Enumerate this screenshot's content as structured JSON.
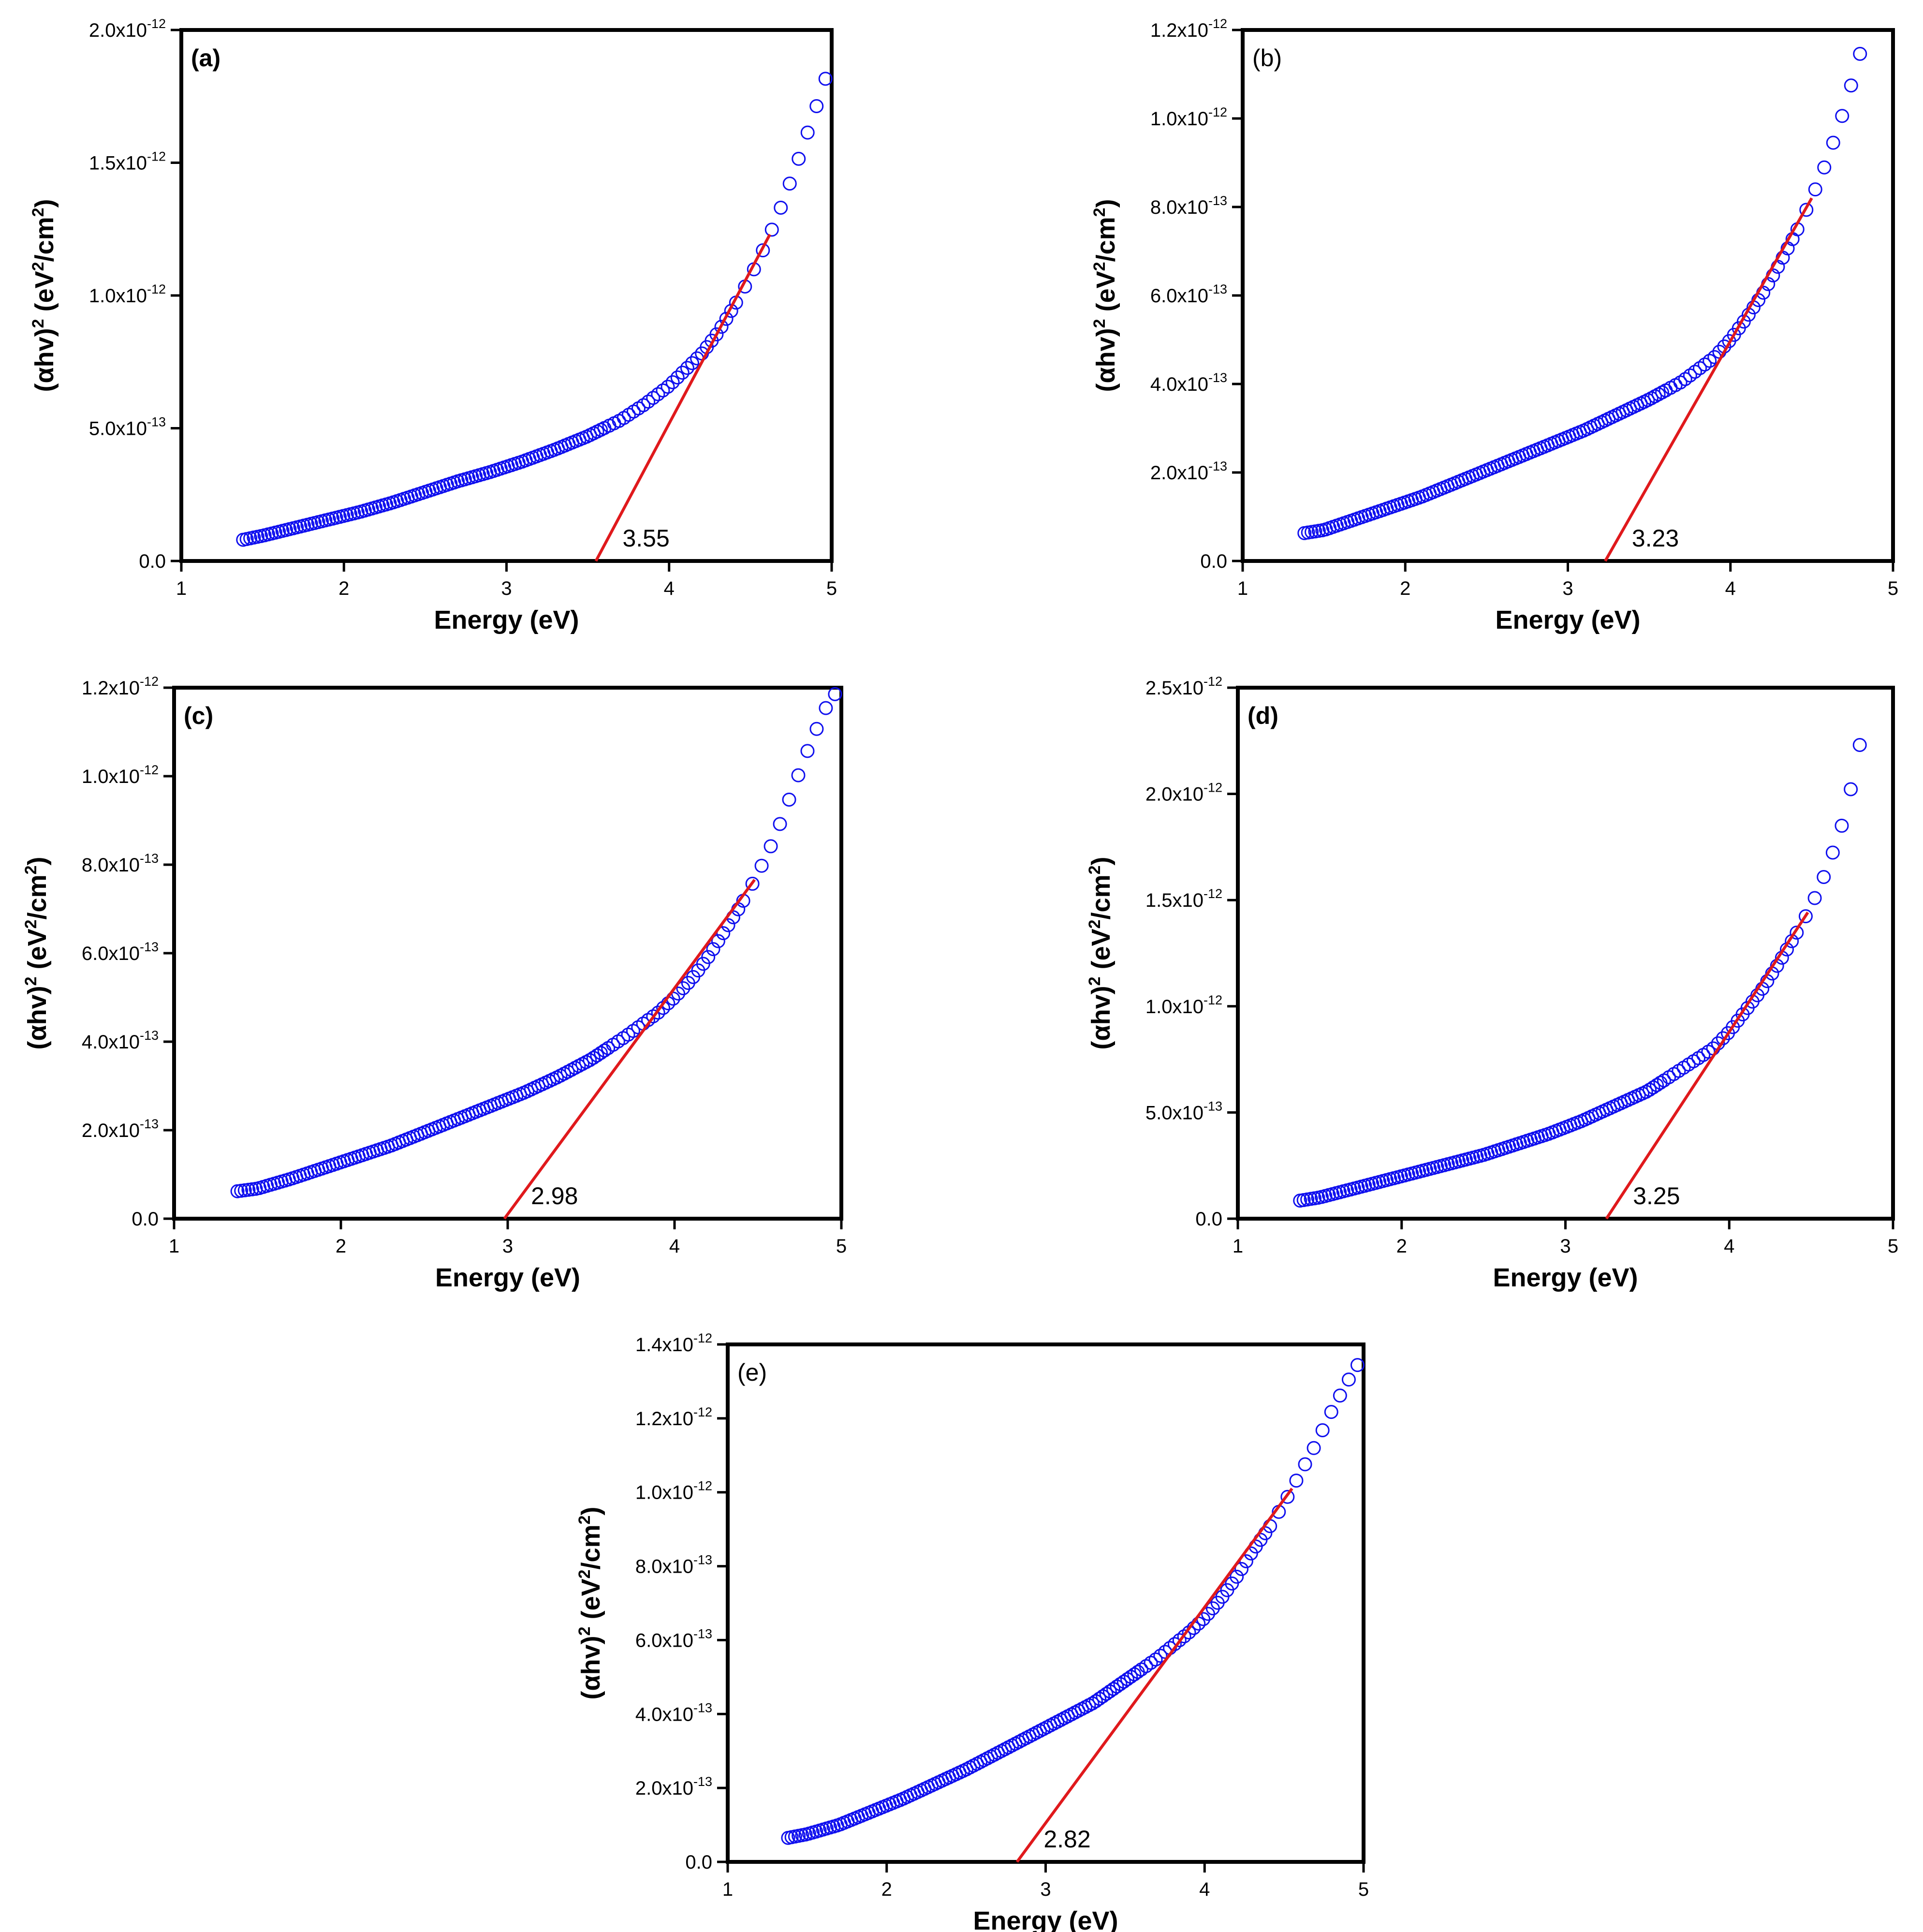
{
  "figure": {
    "style": {
      "marker_color": "#1010ee",
      "fit_line_color": "#e0191c",
      "axis_color": "#000000",
      "background": "#ffffff"
    }
  },
  "chart_data": [
    {
      "panel": "a",
      "label": "(a)",
      "label_bold": true,
      "type": "scatter",
      "xlabel": "Energy (eV)",
      "ylabel": "(αhv)² (eV²/cm²)",
      "xlim": [
        1,
        5
      ],
      "ylim": [
        0,
        2e-12
      ],
      "xticks": [
        1,
        2,
        3,
        4,
        5
      ],
      "xtick_labels": [
        "1",
        "2",
        "3",
        "4",
        "5"
      ],
      "yticks": [
        0,
        5e-13,
        1e-12,
        1.5e-12,
        2e-12
      ],
      "ytick_labels": [
        {
          "mant": "0.0",
          "exp": ""
        },
        {
          "mant": "5.0x10",
          "exp": "-13"
        },
        {
          "mant": "1.0x10",
          "exp": "-12"
        },
        {
          "mant": "1.5x10",
          "exp": "-12"
        },
        {
          "mant": "2.0x10",
          "exp": "-12"
        }
      ],
      "series": [
        {
          "marker": "open-circle",
          "points": [
            [
              1.38,
              8e-14
            ],
            [
              1.5,
              9.5e-14
            ],
            [
              1.7,
              1.25e-13
            ],
            [
              1.9,
              1.55e-13
            ],
            [
              2.1,
              1.85e-13
            ],
            [
              2.3,
              2.2e-13
            ],
            [
              2.5,
              2.6e-13
            ],
            [
              2.7,
              3e-13
            ],
            [
              2.9,
              3.35e-13
            ],
            [
              3.1,
              3.75e-13
            ],
            [
              3.3,
              4.2e-13
            ],
            [
              3.5,
              4.7e-13
            ],
            [
              3.7,
              5.3e-13
            ],
            [
              3.85,
              5.9e-13
            ],
            [
              4.0,
              6.6e-13
            ],
            [
              4.1,
              7.2e-13
            ],
            [
              4.2,
              7.8e-13
            ],
            [
              4.3,
              8.6e-13
            ],
            [
              4.4,
              9.6e-13
            ],
            [
              4.5,
              1.07e-12
            ],
            [
              4.6,
              1.2e-12
            ],
            [
              4.7,
              1.35e-12
            ],
            [
              4.8,
              1.52e-12
            ],
            [
              4.9,
              1.7e-12
            ],
            [
              4.98,
              1.85e-12
            ]
          ]
        }
      ],
      "fit_line": {
        "x0": 3.55,
        "x1": 4.62
      },
      "annotations": [
        {
          "text": "3.55",
          "x": 3.55
        }
      ]
    },
    {
      "panel": "b",
      "label": "(b)",
      "label_bold": false,
      "type": "scatter",
      "xlabel": "Energy (eV)",
      "ylabel": "(αhv)² (eV²/cm²)",
      "xlim": [
        1,
        5
      ],
      "ylim": [
        0,
        1.2e-12
      ],
      "xticks": [
        1,
        2,
        3,
        4,
        5
      ],
      "xtick_labels": [
        "1",
        "2",
        "3",
        "4",
        "5"
      ],
      "yticks": [
        0,
        2e-13,
        4e-13,
        6e-13,
        8e-13,
        1e-12,
        1.2e-12
      ],
      "ytick_labels": [
        {
          "mant": "0.0",
          "exp": ""
        },
        {
          "mant": "2.0x10",
          "exp": "-13"
        },
        {
          "mant": "4.0x10",
          "exp": "-13"
        },
        {
          "mant": "6.0x10",
          "exp": "-13"
        },
        {
          "mant": "8.0x10",
          "exp": "-13"
        },
        {
          "mant": "1.0x10",
          "exp": "-12"
        },
        {
          "mant": "1.2x10",
          "exp": "-12"
        }
      ],
      "series": [
        {
          "marker": "open-circle",
          "points": [
            [
              1.38,
              6.3e-14
            ],
            [
              1.5,
              7e-14
            ],
            [
              1.7,
              9.5e-14
            ],
            [
              1.9,
              1.2e-13
            ],
            [
              2.1,
              1.45e-13
            ],
            [
              2.3,
              1.75e-13
            ],
            [
              2.5,
              2.05e-13
            ],
            [
              2.7,
              2.35e-13
            ],
            [
              2.9,
              2.65e-13
            ],
            [
              3.1,
              2.95e-13
            ],
            [
              3.3,
              3.3e-13
            ],
            [
              3.5,
              3.65e-13
            ],
            [
              3.7,
              4.05e-13
            ],
            [
              3.9,
              4.6e-13
            ],
            [
              4.0,
              5e-13
            ],
            [
              4.1,
              5.5e-13
            ],
            [
              4.2,
              6.05e-13
            ],
            [
              4.3,
              6.7e-13
            ],
            [
              4.4,
              7.4e-13
            ],
            [
              4.5,
              8.2e-13
            ],
            [
              4.6,
              9.1e-13
            ],
            [
              4.7,
              1.02e-12
            ],
            [
              4.8,
              1.15e-12
            ],
            [
              4.83,
              1.2e-12
            ]
          ]
        }
      ],
      "fit_line": {
        "x0": 3.23,
        "x1": 4.5
      },
      "annotations": [
        {
          "text": "3.23",
          "x": 3.23
        }
      ]
    },
    {
      "panel": "c",
      "label": "(c)",
      "label_bold": true,
      "type": "scatter",
      "xlabel": "Energy (eV)",
      "ylabel": "(αhv)² (eV²/cm²)",
      "xlim": [
        1,
        5
      ],
      "ylim": [
        0,
        1.2e-12
      ],
      "xticks": [
        1,
        2,
        3,
        4,
        5
      ],
      "xtick_labels": [
        "1",
        "2",
        "3",
        "4",
        "5"
      ],
      "yticks": [
        0,
        2e-13,
        4e-13,
        6e-13,
        8e-13,
        1e-12,
        1.2e-12
      ],
      "ytick_labels": [
        {
          "mant": "0.0",
          "exp": ""
        },
        {
          "mant": "2.0x10",
          "exp": "-13"
        },
        {
          "mant": "4.0x10",
          "exp": "-13"
        },
        {
          "mant": "6.0x10",
          "exp": "-13"
        },
        {
          "mant": "8.0x10",
          "exp": "-13"
        },
        {
          "mant": "1.0x10",
          "exp": "-12"
        },
        {
          "mant": "1.2x10",
          "exp": "-12"
        }
      ],
      "series": [
        {
          "marker": "open-circle",
          "points": [
            [
              1.38,
              6.2e-14
            ],
            [
              1.5,
              6.8e-14
            ],
            [
              1.7,
              9e-14
            ],
            [
              1.9,
              1.15e-13
            ],
            [
              2.1,
              1.4e-13
            ],
            [
              2.3,
              1.65e-13
            ],
            [
              2.5,
              1.95e-13
            ],
            [
              2.7,
              2.25e-13
            ],
            [
              2.9,
              2.55e-13
            ],
            [
              3.1,
              2.85e-13
            ],
            [
              3.3,
              3.2e-13
            ],
            [
              3.5,
              3.6e-13
            ],
            [
              3.7,
              4.1e-13
            ],
            [
              3.9,
              4.65e-13
            ],
            [
              4.0,
              5e-13
            ],
            [
              4.1,
              5.4e-13
            ],
            [
              4.2,
              5.9e-13
            ],
            [
              4.3,
              6.5e-13
            ],
            [
              4.4,
              7.1e-13
            ],
            [
              4.5,
              7.8e-13
            ],
            [
              4.6,
              8.6e-13
            ],
            [
              4.7,
              9.6e-13
            ],
            [
              4.8,
              1.06e-12
            ],
            [
              4.9,
              1.15e-12
            ],
            [
              4.97,
              1.19e-12
            ]
          ]
        }
      ],
      "fit_line": {
        "x0": 2.98,
        "x1": 4.48
      },
      "annotations": [
        {
          "text": "2.98",
          "x": 2.98
        }
      ]
    },
    {
      "panel": "d",
      "label": "(d)",
      "label_bold": true,
      "type": "scatter",
      "xlabel": "Energy (eV)",
      "ylabel": "(αhv)² (eV²/cm²)",
      "xlim": [
        1,
        5
      ],
      "ylim": [
        0,
        2.5e-12
      ],
      "xticks": [
        1,
        2,
        3,
        4,
        5
      ],
      "xtick_labels": [
        "1",
        "2",
        "3",
        "4",
        "5"
      ],
      "yticks": [
        0,
        5e-13,
        1e-12,
        1.5e-12,
        2e-12,
        2.5e-12
      ],
      "ytick_labels": [
        {
          "mant": "0.0",
          "exp": ""
        },
        {
          "mant": "5.0x10",
          "exp": "-13"
        },
        {
          "mant": "1.0x10",
          "exp": "-12"
        },
        {
          "mant": "1.5x10",
          "exp": "-12"
        },
        {
          "mant": "2.0x10",
          "exp": "-12"
        },
        {
          "mant": "2.5x10",
          "exp": "-12"
        }
      ],
      "series": [
        {
          "marker": "open-circle",
          "points": [
            [
              1.38,
              8.5e-14
            ],
            [
              1.5,
              1e-13
            ],
            [
              1.7,
              1.4e-13
            ],
            [
              1.9,
              1.8e-13
            ],
            [
              2.1,
              2.2e-13
            ],
            [
              2.3,
              2.6e-13
            ],
            [
              2.5,
              3e-13
            ],
            [
              2.7,
              3.5e-13
            ],
            [
              2.9,
              4e-13
            ],
            [
              3.1,
              4.6e-13
            ],
            [
              3.3,
              5.3e-13
            ],
            [
              3.5,
              6e-13
            ],
            [
              3.7,
              7e-13
            ],
            [
              3.9,
              8e-13
            ],
            [
              4.0,
              8.8e-13
            ],
            [
              4.1,
              9.8e-13
            ],
            [
              4.2,
              1.08e-12
            ],
            [
              4.3,
              1.2e-12
            ],
            [
              4.4,
              1.33e-12
            ],
            [
              4.5,
              1.47e-12
            ],
            [
              4.6,
              1.65e-12
            ],
            [
              4.7,
              1.88e-12
            ],
            [
              4.78,
              2.15e-12
            ],
            [
              4.85,
              2.48e-12
            ]
          ]
        }
      ],
      "fit_line": {
        "x0": 3.25,
        "x1": 4.48
      },
      "annotations": [
        {
          "text": "3.25",
          "x": 3.25
        }
      ]
    },
    {
      "panel": "e",
      "label": "(e)",
      "label_bold": false,
      "type": "scatter",
      "xlabel": "Energy (eV)",
      "ylabel": "(αhv)² (eV²/cm²)",
      "xlim": [
        1,
        5
      ],
      "ylim": [
        0,
        1.4e-12
      ],
      "xticks": [
        1,
        2,
        3,
        4,
        5
      ],
      "xtick_labels": [
        "1",
        "2",
        "3",
        "4",
        "5"
      ],
      "yticks": [
        0,
        2e-13,
        4e-13,
        6e-13,
        8e-13,
        1e-12,
        1.2e-12,
        1.4e-12
      ],
      "ytick_labels": [
        {
          "mant": "0.0",
          "exp": ""
        },
        {
          "mant": "2.0x10",
          "exp": "-13"
        },
        {
          "mant": "4.0x10",
          "exp": "-13"
        },
        {
          "mant": "6.0x10",
          "exp": "-13"
        },
        {
          "mant": "8.0x10",
          "exp": "-13"
        },
        {
          "mant": "1.0x10",
          "exp": "-12"
        },
        {
          "mant": "1.2x10",
          "exp": "-12"
        },
        {
          "mant": "1.4x10",
          "exp": "-12"
        }
      ],
      "series": [
        {
          "marker": "open-circle",
          "points": [
            [
              1.38,
              6.5e-14
            ],
            [
              1.5,
              7.5e-14
            ],
            [
              1.7,
              1e-13
            ],
            [
              1.9,
              1.35e-13
            ],
            [
              2.1,
              1.7e-13
            ],
            [
              2.3,
              2.1e-13
            ],
            [
              2.5,
              2.5e-13
            ],
            [
              2.7,
              2.95e-13
            ],
            [
              2.9,
              3.4e-13
            ],
            [
              3.1,
              3.85e-13
            ],
            [
              3.3,
              4.3e-13
            ],
            [
              3.5,
              4.9e-13
            ],
            [
              3.7,
              5.5e-13
            ],
            [
              3.9,
              6.2e-13
            ],
            [
              4.0,
              6.6e-13
            ],
            [
              4.1,
              7.1e-13
            ],
            [
              4.2,
              7.7e-13
            ],
            [
              4.3,
              8.4e-13
            ],
            [
              4.4,
              9e-13
            ],
            [
              4.5,
              9.7e-13
            ],
            [
              4.6,
              1.05e-12
            ],
            [
              4.7,
              1.13e-12
            ],
            [
              4.8,
              1.22e-12
            ],
            [
              4.9,
              1.3e-12
            ],
            [
              4.97,
              1.35e-12
            ]
          ]
        }
      ],
      "fit_line": {
        "x0": 2.82,
        "x1": 4.55
      },
      "annotations": [
        {
          "text": "2.82",
          "x": 2.82
        }
      ]
    }
  ]
}
